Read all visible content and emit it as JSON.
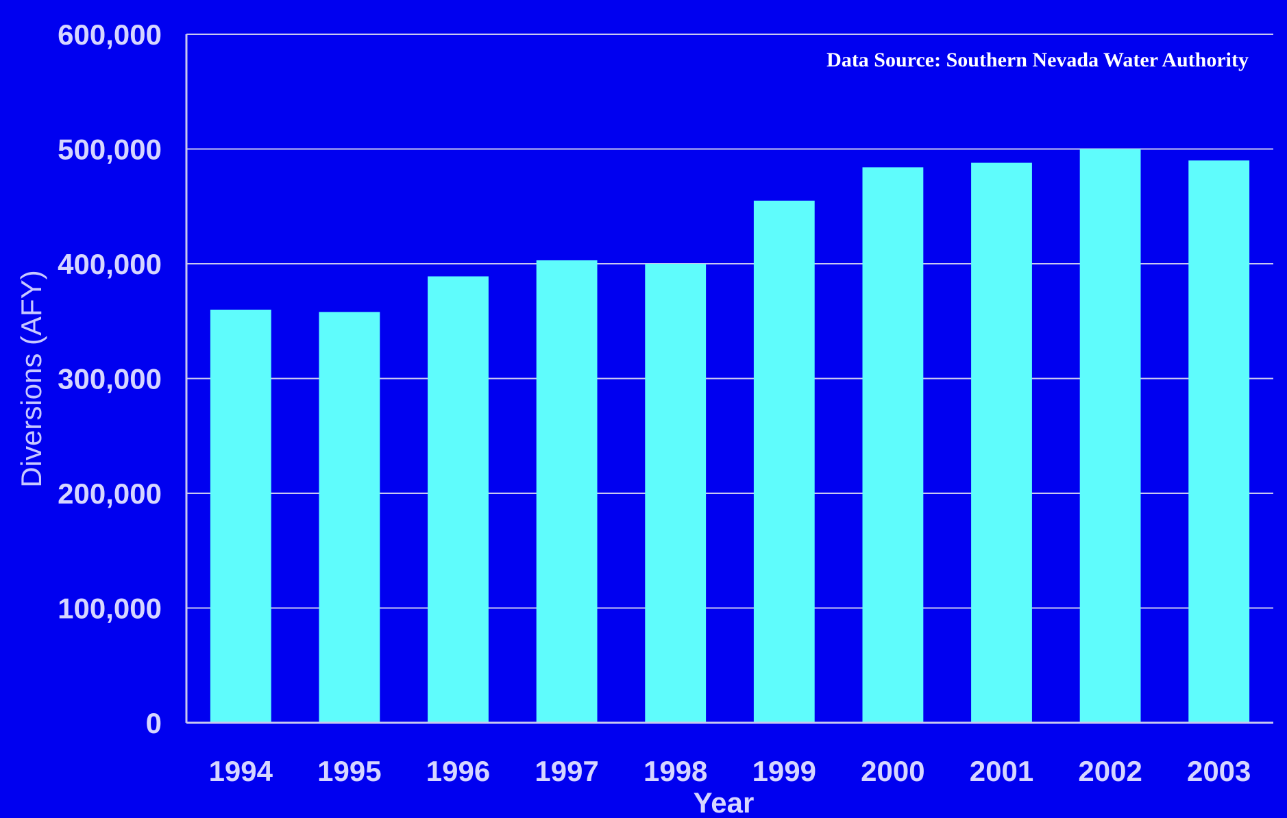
{
  "chart_data": {
    "type": "bar",
    "title": "",
    "annotation": "Data Source: Southern Nevada Water Authority",
    "xlabel": "Year",
    "ylabel": "Diversions (AFY)",
    "ylim": [
      0,
      600000
    ],
    "yticks": [
      "0",
      "100,000",
      "200,000",
      "300,000",
      "400,000",
      "500,000",
      "600,000"
    ],
    "categories": [
      "1994",
      "1995",
      "1996",
      "1997",
      "1998",
      "1999",
      "2000",
      "2001",
      "2002",
      "2003"
    ],
    "values": [
      360000,
      358000,
      389000,
      403000,
      400000,
      455000,
      484000,
      488000,
      500000,
      490000
    ],
    "grid": true,
    "colors": {
      "background": "#0000f0",
      "bar": "#5ffcfc",
      "grid": "#c8c8f0",
      "text": "#d6d6ff"
    }
  }
}
